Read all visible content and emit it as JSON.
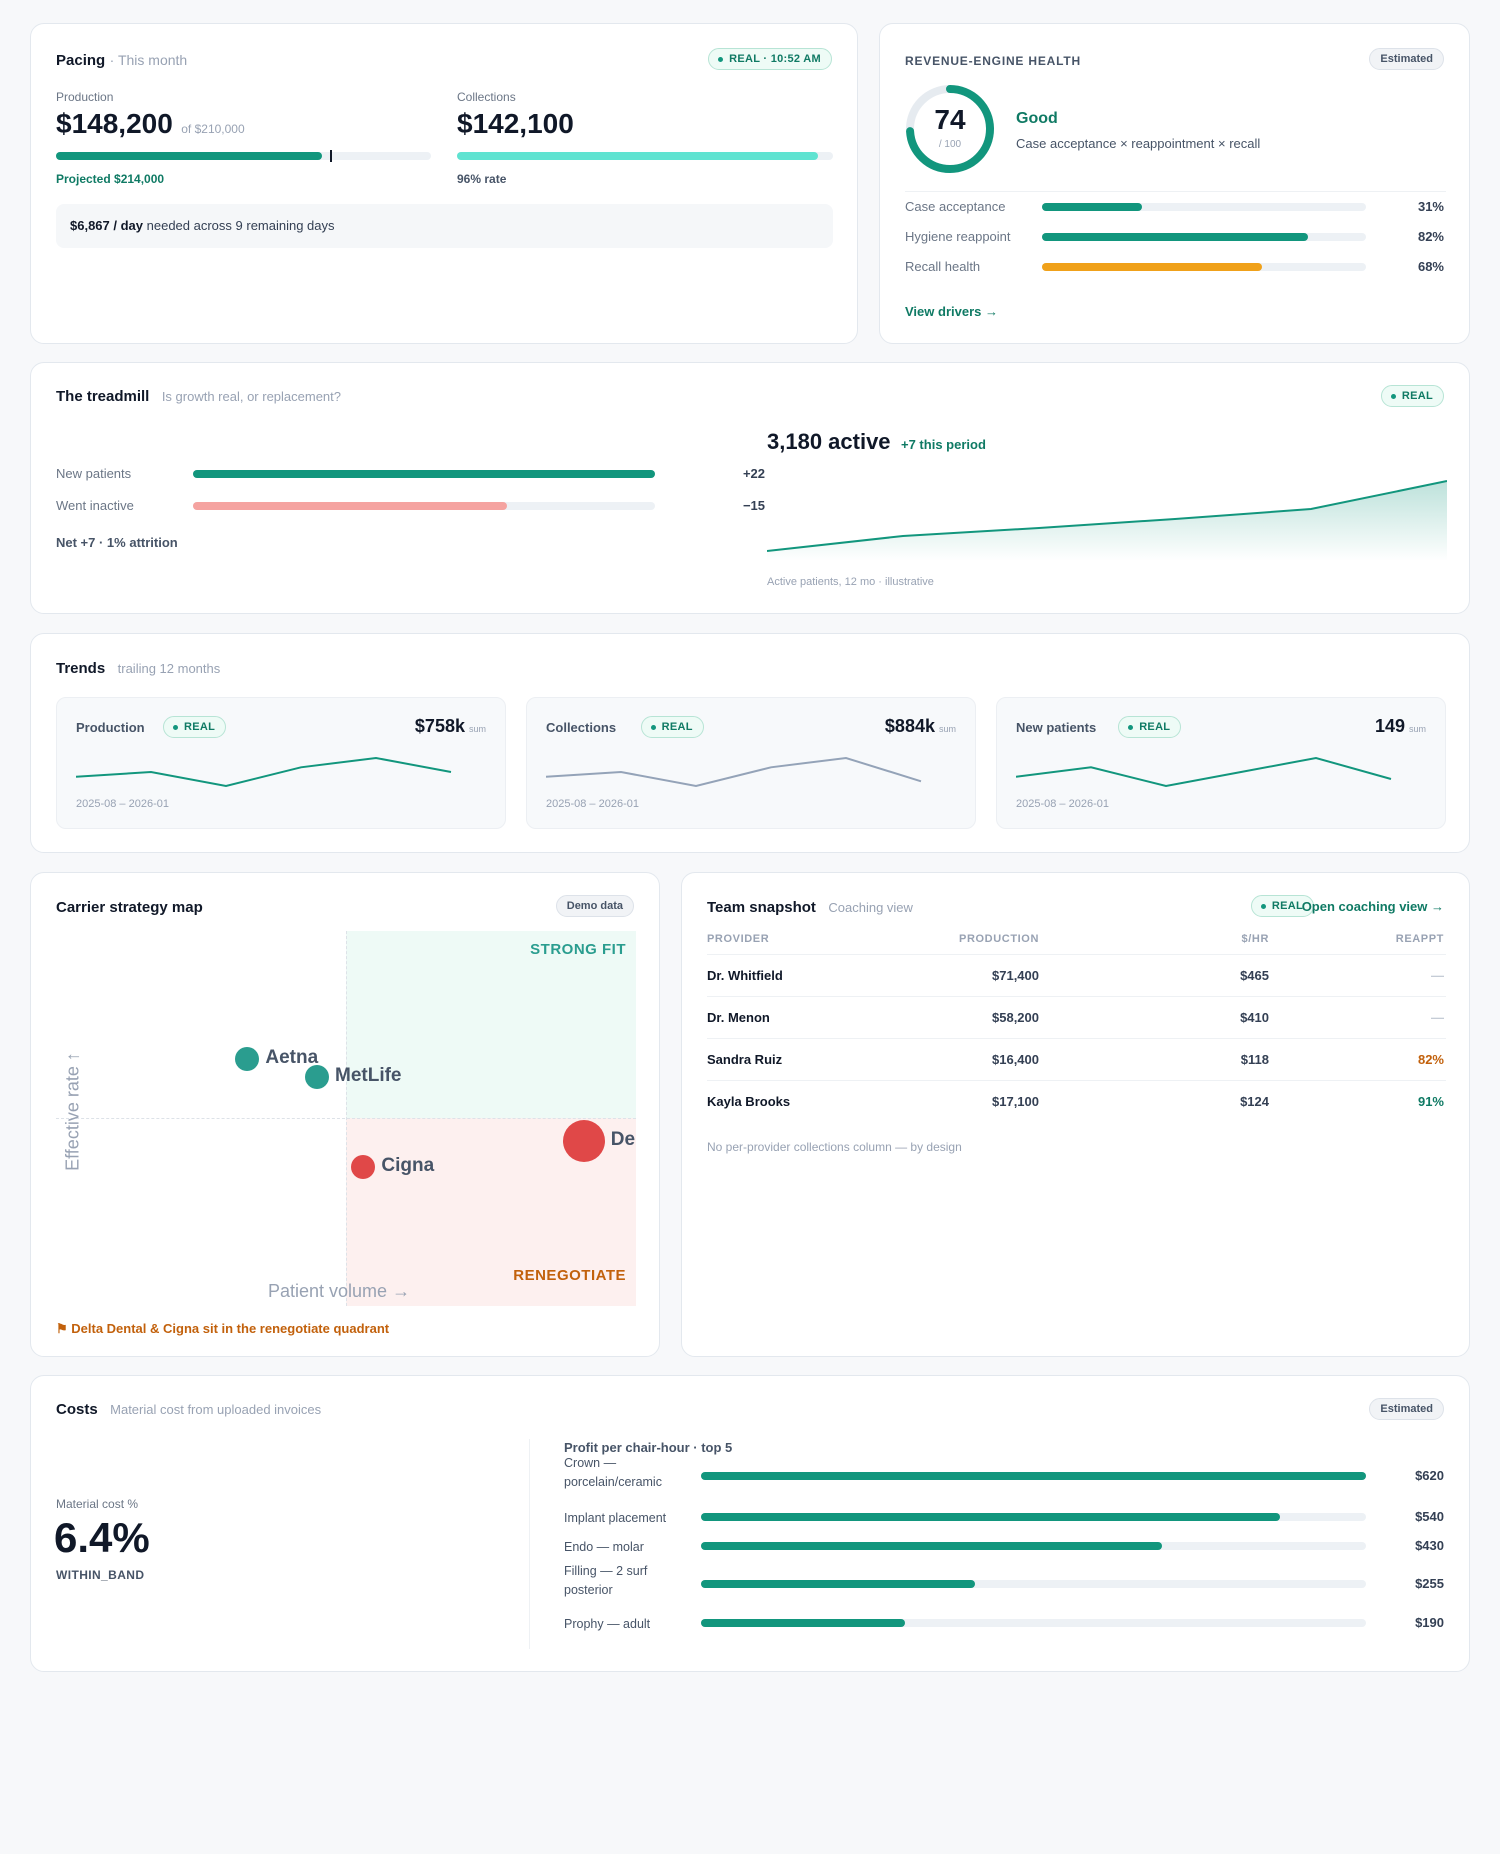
{
  "pacing": {
    "title": "Pacing",
    "subtitle": "· This month",
    "badge": "REAL · 10:52 AM",
    "production_label": "Production",
    "production_value": "$148,200",
    "production_of": "of $210,000",
    "production_progress": 0.71,
    "projected": "Projected $214,000",
    "collections_label": "Collections",
    "collections_value": "$142,100",
    "collections_progress": 0.96,
    "collections_rate": "96% rate",
    "daily_needed_strong": "$6,867 / day",
    "daily_needed_rest": "needed across 9 remaining days"
  },
  "health": {
    "title": "REVENUE-ENGINE HEALTH",
    "badge": "Estimated",
    "score": "74",
    "score_max": "/ 100",
    "score_fraction": 0.74,
    "status": "Good",
    "formula": "Case acceptance × reappointment × recall",
    "metrics": [
      {
        "label": "Case acceptance",
        "value": "31%",
        "fraction": 0.31,
        "color": "#12967d"
      },
      {
        "label": "Hygiene reappoint",
        "value": "82%",
        "fraction": 0.82,
        "color": "#12967d"
      },
      {
        "label": "Recall health",
        "value": "68%",
        "fraction": 0.68,
        "color": "#f0a11a"
      }
    ],
    "link": "View drivers →"
  },
  "treadmill": {
    "title": "The treadmill",
    "subtitle": "Is growth real, or replacement?",
    "badge": "REAL",
    "rows": [
      {
        "label": "New patients",
        "value": "+22",
        "fraction": 1.0,
        "color": "#12967d"
      },
      {
        "label": "Went inactive",
        "value": "−15",
        "fraction": 0.68,
        "color": "#f5a3a0"
      }
    ],
    "net": "Net +7 · 1% attrition",
    "active": "3,180 active",
    "active_delta": "+7 this period",
    "caption": "Active patients, 12 mo · illustrative",
    "chart_data": {
      "type": "area",
      "x_count": 6,
      "values": [
        3173,
        3174.5,
        3175.3,
        3176.2,
        3177.2,
        3180
      ],
      "ylim": [
        3172,
        3181
      ]
    }
  },
  "trends": {
    "title": "Trends",
    "subtitle": "trailing 12 months",
    "cards": [
      {
        "label": "Production",
        "badge": "REAL",
        "value": "$758k",
        "unit": "sum",
        "range": "2025-08 – 2026-01",
        "color": "#12967d",
        "values": [
          3,
          4,
          1,
          5,
          7,
          4
        ]
      },
      {
        "label": "Collections",
        "badge": "REAL",
        "value": "$884k",
        "unit": "sum",
        "range": "2025-08 – 2026-01",
        "color": "#94a3b8",
        "values": [
          3,
          4,
          1,
          5,
          7,
          2
        ]
      },
      {
        "label": "New patients",
        "badge": "REAL",
        "value": "149",
        "unit": "sum",
        "range": "2025-08 – 2026-01",
        "color": "#12967d",
        "values": [
          3,
          5,
          1,
          4,
          7,
          2.5
        ]
      }
    ]
  },
  "carrier": {
    "title": "Carrier strategy map",
    "badge": "Demo data",
    "strong_fit": "STRONG FIT",
    "renegotiate": "RENEGOTIATE",
    "x_label": "Patient volume →",
    "y_label": "Effective rate ↑",
    "note": "⚑ Delta Dental & Cigna sit in the renegotiate quadrant",
    "chart_data": {
      "type": "scatter",
      "xlim": [
        0,
        100
      ],
      "ylim": [
        0,
        100
      ],
      "threshold_x": 50,
      "threshold_y": 50,
      "points": [
        {
          "name": "Aetna",
          "x": 33,
          "y": 66,
          "size": "medium",
          "color": "#2a9d8f"
        },
        {
          "name": "MetLife",
          "x": 45,
          "y": 61,
          "size": "medium",
          "color": "#2a9d8f"
        },
        {
          "name": "Cigna",
          "x": 53,
          "y": 37,
          "size": "medium",
          "color": "#e04848"
        },
        {
          "name": "De",
          "x": 91,
          "y": 44,
          "size": "large",
          "color": "#e04848"
        }
      ]
    }
  },
  "team": {
    "title": "Team snapshot",
    "subtitle": "Coaching view",
    "badge": "REAL",
    "link": "Open coaching view →",
    "columns": [
      "PROVIDER",
      "PRODUCTION",
      "$/HR",
      "REAPPT"
    ],
    "rows": [
      {
        "provider": "Dr. Whitfield",
        "production": "$71,400",
        "rate": "$465",
        "reappt": "—",
        "reappt_color": "#c5ccd6"
      },
      {
        "provider": "Dr. Menon",
        "production": "$58,200",
        "rate": "$410",
        "reappt": "—",
        "reappt_color": "#c5ccd6"
      },
      {
        "provider": "Sandra Ruiz",
        "production": "$16,400",
        "rate": "$118",
        "reappt": "82%",
        "reappt_color": "#c2610c"
      },
      {
        "provider": "Kayla Brooks",
        "production": "$17,100",
        "rate": "$124",
        "reappt": "91%",
        "reappt_color": "#0f7a64"
      }
    ],
    "note": "No per-provider collections column — by design"
  },
  "costs": {
    "title": "Costs",
    "subtitle": "Material cost from uploaded invoices",
    "badge": "Estimated",
    "metric_label": "Material cost %",
    "metric_value": "6.4%",
    "metric_status": "WITHIN_BAND",
    "chart_title": "Profit per chair-hour · top 5",
    "chart_data": {
      "type": "bar",
      "categories": [
        "Crown — porcelain/ceramic",
        "Implant placement",
        "Endo — molar",
        "Filling — 2 surf posterior",
        "Prophy — adult"
      ],
      "values": [
        620,
        540,
        430,
        255,
        190
      ],
      "labels": [
        "$620",
        "$540",
        "$430",
        "$255",
        "$190"
      ],
      "xlim": [
        0,
        620
      ]
    }
  }
}
